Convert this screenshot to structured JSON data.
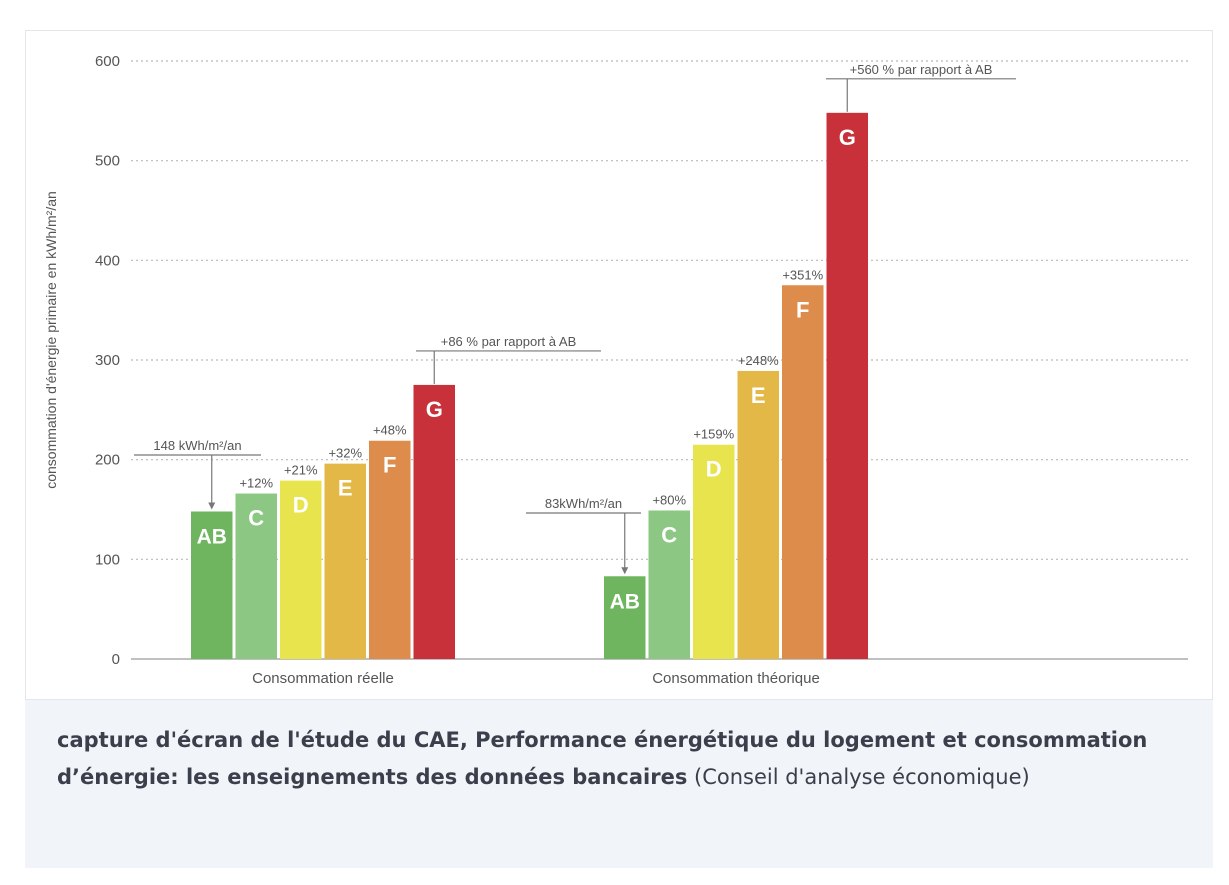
{
  "chart_data": {
    "type": "bar",
    "ylabel": "consommation d'énergie primaire en kWh/m²/an",
    "ylim": [
      0,
      600
    ],
    "yticks": [
      "0",
      "100",
      "200",
      "300",
      "400",
      "500",
      "600"
    ],
    "grid": true,
    "colors": {
      "AB": "#6fb55f",
      "C": "#8cc783",
      "D": "#e8e44e",
      "E": "#e3b846",
      "F": "#dd8c4b",
      "G": "#c8313a"
    },
    "groups": [
      {
        "label": "Consommation réelle",
        "bars": [
          {
            "category": "AB",
            "value": 148,
            "annotation": ""
          },
          {
            "category": "C",
            "value": 166,
            "annotation": "+12%"
          },
          {
            "category": "D",
            "value": 179,
            "annotation": "+21%"
          },
          {
            "category": "E",
            "value": 196,
            "annotation": "+32%"
          },
          {
            "category": "F",
            "value": 219,
            "annotation": "+48%"
          },
          {
            "category": "G",
            "value": 275,
            "annotation": ""
          }
        ],
        "reference_label": "148 kWh/m²/an",
        "top_label": "+86 % par rapport à AB"
      },
      {
        "label": "Consommation théorique",
        "bars": [
          {
            "category": "AB",
            "value": 83,
            "annotation": ""
          },
          {
            "category": "C",
            "value": 149,
            "annotation": "+80%"
          },
          {
            "category": "D",
            "value": 215,
            "annotation": "+159%"
          },
          {
            "category": "E",
            "value": 289,
            "annotation": "+248%"
          },
          {
            "category": "F",
            "value": 375,
            "annotation": "+351%"
          },
          {
            "category": "G",
            "value": 548,
            "annotation": ""
          }
        ],
        "reference_label": "83kWh/m²/an",
        "top_label": "+560 % par rapport à AB"
      }
    ]
  },
  "caption": {
    "bold": "capture d'écran de l'étude du CAE, Performance énergétique du logement et consommation d’énergie: les enseignements des données bancaires",
    "normal": " (Conseil d'analyse économique)"
  }
}
